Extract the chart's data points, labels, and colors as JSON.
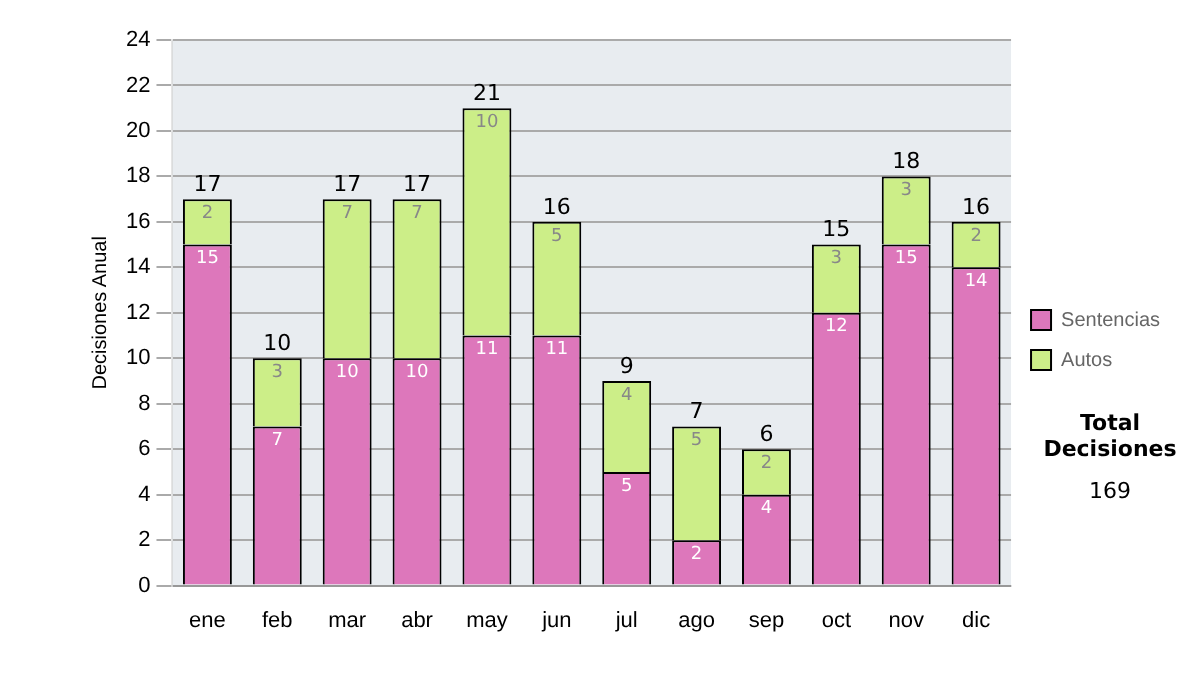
{
  "chart_data": {
    "type": "bar",
    "stacked": true,
    "ylabel": "Decisiones Anual",
    "categories": [
      "ene",
      "feb",
      "mar",
      "abr",
      "may",
      "jun",
      "jul",
      "ago",
      "sep",
      "oct",
      "nov",
      "dic"
    ],
    "series": [
      {
        "name": "Sentencias",
        "color": "#dd77bb",
        "values": [
          15,
          7,
          10,
          10,
          11,
          11,
          5,
          2,
          4,
          12,
          15,
          14
        ]
      },
      {
        "name": "Autos",
        "color": "#ccee88",
        "values": [
          2,
          3,
          7,
          7,
          10,
          5,
          4,
          5,
          2,
          3,
          3,
          2
        ]
      }
    ],
    "totals": [
      "17",
      "10",
      "17",
      "17",
      "21",
      "16",
      "9",
      "7",
      "6",
      "15",
      "18",
      "16"
    ],
    "ylim": [
      0,
      24
    ],
    "yticks": [
      0,
      2,
      4,
      6,
      8,
      10,
      12,
      14,
      16,
      18,
      20,
      22,
      24
    ],
    "grid": "y",
    "legend": "right",
    "data_labels": true,
    "annotations": [
      "Total Decisiones",
      "169"
    ]
  }
}
